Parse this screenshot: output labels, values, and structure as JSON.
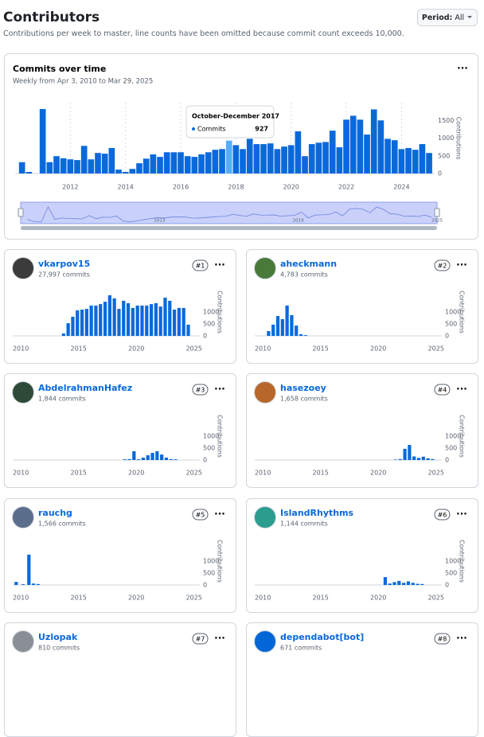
{
  "header": {
    "title": "Contributors",
    "subtitle": "Contributions per week to master, line counts have been omitted because commit count exceeds 10,000."
  },
  "period": {
    "label": "Period:",
    "value": "All"
  },
  "chart_data": {
    "type": "bar",
    "title": "Commits over time",
    "subtitle": "Weekly from Apr 3, 2010 to Mar 29, 2025",
    "x": [
      2010.25,
      2010.5,
      2010.75,
      2011,
      2011.25,
      2011.5,
      2011.75,
      2012,
      2012.25,
      2012.5,
      2012.75,
      2013,
      2013.25,
      2013.5,
      2013.75,
      2014,
      2014.25,
      2014.5,
      2014.75,
      2015,
      2015.25,
      2015.5,
      2015.75,
      2016,
      2016.25,
      2016.5,
      2016.75,
      2017,
      2017.25,
      2017.5,
      2017.75,
      2018,
      2018.25,
      2018.5,
      2018.75,
      2019,
      2019.25,
      2019.5,
      2019.75,
      2020,
      2020.25,
      2020.5,
      2020.75,
      2021,
      2021.25,
      2021.5,
      2021.75,
      2022,
      2022.25,
      2022.5,
      2022.75,
      2023,
      2023.25,
      2023.5,
      2023.75,
      2024,
      2024.25,
      2024.5,
      2024.75,
      2025
    ],
    "values": [
      320,
      45,
      0,
      1820,
      320,
      490,
      430,
      400,
      380,
      780,
      400,
      580,
      560,
      720,
      110,
      45,
      130,
      290,
      420,
      540,
      470,
      600,
      600,
      600,
      490,
      470,
      540,
      600,
      670,
      690,
      927,
      800,
      690,
      980,
      830,
      830,
      850,
      690,
      760,
      800,
      1190,
      490,
      830,
      870,
      890,
      1210,
      740,
      1520,
      1630,
      1520,
      1100,
      1810,
      1500,
      980,
      940,
      690,
      720,
      670,
      830,
      580
    ],
    "color": "#0969da",
    "xlim": [
      2010,
      2025.2
    ],
    "xticks": [
      2012,
      2014,
      2016,
      2018,
      2020,
      2022,
      2024
    ],
    "ylim": [
      0,
      2000
    ],
    "yticks": [
      0,
      500,
      1000,
      1500
    ],
    "ylabel": "Contributions",
    "grid": true,
    "tooltip": {
      "title": "October-December 2017",
      "series": "Commits"
    },
    "brush": {
      "xlim": [
        2007,
        2025
      ],
      "xticks": [
        2013,
        2019,
        2025
      ]
    }
  },
  "contributors": [
    {
      "rank": "#1",
      "name": "vkarpov15",
      "commits": "27,997 commits",
      "avatar": "#3b3b3b",
      "chart": {
        "type": "bar",
        "x": [
          2013.7,
          2014.1,
          2014.5,
          2014.9,
          2015.3,
          2015.7,
          2016.1,
          2016.5,
          2016.9,
          2017.3,
          2017.7,
          2018.1,
          2018.5,
          2018.9,
          2019.3,
          2019.7,
          2020.1,
          2020.5,
          2020.9,
          2021.3,
          2021.7,
          2022.1,
          2022.5,
          2022.9,
          2023.3,
          2023.7,
          2024.1,
          2024.5
        ],
        "values": [
          100,
          530,
          800,
          1070,
          1100,
          1130,
          1270,
          1270,
          1330,
          1430,
          1700,
          1570,
          1130,
          1470,
          1370,
          1170,
          1270,
          1270,
          1270,
          1330,
          1370,
          1230,
          1600,
          1470,
          1100,
          1170,
          1170,
          470
        ],
        "color": "#0969da",
        "xlim": [
          2009.3,
          2025.5
        ],
        "xticks": [
          2010,
          2015,
          2020,
          2025
        ],
        "ylim": [
          0,
          2000
        ],
        "yticks": [
          0,
          500,
          1000
        ],
        "ylabel": "Contributions"
      }
    },
    {
      "rank": "#2",
      "name": "aheckmann",
      "commits": "4,783 commits",
      "avatar": "#4a7a3a",
      "chart": {
        "type": "bar",
        "x": [
          2010.5,
          2010.9,
          2011.3,
          2011.7,
          2012.1,
          2012.5,
          2012.9,
          2013.3,
          2013.7
        ],
        "values": [
          200,
          470,
          830,
          700,
          1270,
          870,
          430,
          70,
          30
        ],
        "color": "#0969da",
        "xlim": [
          2009.3,
          2025.5
        ],
        "xticks": [
          2010,
          2015,
          2020,
          2025
        ],
        "ylim": [
          0,
          2000
        ],
        "yticks": [
          0,
          500,
          1000
        ],
        "ylabel": "Contributions"
      }
    },
    {
      "rank": "#3",
      "name": "AbdelrahmanHafez",
      "commits": "1,844 commits",
      "avatar": "#2f4a36",
      "chart": {
        "type": "bar",
        "x": [
          2019.0,
          2019.4,
          2019.8,
          2020.2,
          2020.6,
          2021.0,
          2021.4,
          2021.8,
          2022.2,
          2022.6,
          2023.0,
          2023.4
        ],
        "values": [
          30,
          40,
          370,
          30,
          100,
          200,
          300,
          370,
          230,
          100,
          40,
          30
        ],
        "color": "#0969da",
        "xlim": [
          2009.3,
          2025.5
        ],
        "xticks": [
          2010,
          2015,
          2020,
          2025
        ],
        "ylim": [
          0,
          2000
        ],
        "yticks": [
          0,
          500,
          1000
        ],
        "ylabel": "Contributions"
      }
    },
    {
      "rank": "#4",
      "name": "hasezoey",
      "commits": "1,658 commits",
      "avatar": "#b8672a",
      "chart": {
        "type": "bar",
        "x": [
          2021.5,
          2021.9,
          2022.3,
          2022.7,
          2023.1,
          2023.5,
          2023.9,
          2024.3,
          2024.7
        ],
        "values": [
          20,
          40,
          470,
          630,
          150,
          90,
          140,
          70,
          40
        ],
        "color": "#0969da",
        "xlim": [
          2009.3,
          2025.5
        ],
        "xticks": [
          2010,
          2015,
          2020,
          2025
        ],
        "ylim": [
          0,
          2000
        ],
        "yticks": [
          0,
          500,
          1000
        ],
        "ylabel": "Contributions"
      }
    },
    {
      "rank": "#5",
      "name": "rauchg",
      "commits": "1,566 commits",
      "avatar": "#5b6e8c",
      "chart": {
        "type": "bar",
        "x": [
          2009.6,
          2010.2,
          2010.7,
          2011.1,
          2011.5
        ],
        "values": [
          130,
          30,
          1270,
          60,
          40
        ],
        "color": "#0969da",
        "xlim": [
          2009.3,
          2025.5
        ],
        "xticks": [
          2010,
          2015,
          2020,
          2025
        ],
        "ylim": [
          0,
          2000
        ],
        "yticks": [
          0,
          500,
          1000
        ],
        "ylabel": "Contributions"
      }
    },
    {
      "rank": "#6",
      "name": "IslandRhythms",
      "commits": "1,144 commits",
      "avatar": "#2a9d8f",
      "chart": {
        "type": "bar",
        "x": [
          2020.6,
          2021.0,
          2021.4,
          2021.8,
          2022.2,
          2022.6,
          2023.0,
          2023.4,
          2023.8
        ],
        "values": [
          330,
          60,
          120,
          170,
          90,
          150,
          90,
          50,
          40
        ],
        "color": "#0969da",
        "xlim": [
          2009.3,
          2025.5
        ],
        "xticks": [
          2010,
          2015,
          2020,
          2025
        ],
        "ylim": [
          0,
          2000
        ],
        "yticks": [
          0,
          500,
          1000
        ],
        "ylabel": "Contributions"
      }
    },
    {
      "rank": "#7",
      "name": "Uzlopak",
      "commits": "810 commits",
      "avatar": "#8a8f96"
    },
    {
      "rank": "#8",
      "name": "dependabot[bot]",
      "commits": "671 commits",
      "avatar": "#0366d6"
    }
  ]
}
